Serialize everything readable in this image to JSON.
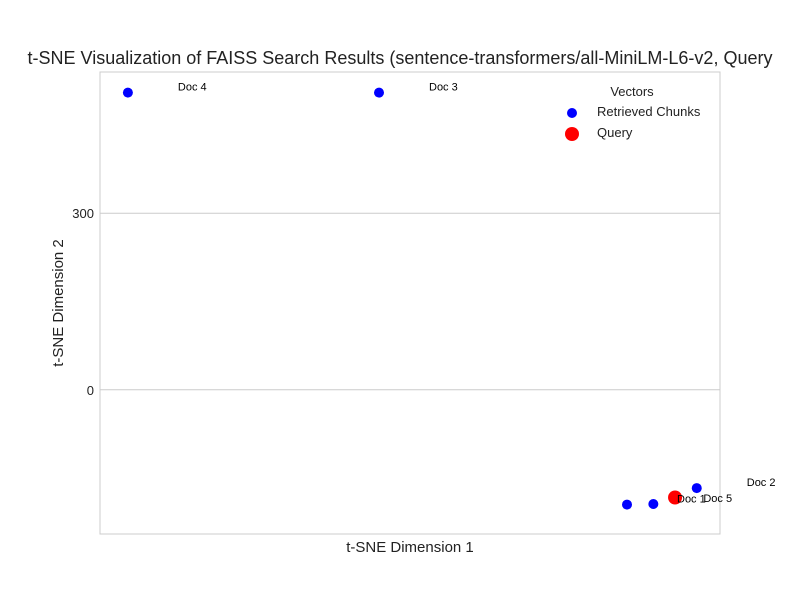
{
  "chart_data": {
    "type": "scatter",
    "title": "t-SNE Visualization of FAISS Search Results (sentence-transformers/all-MiniLM-L6-v2, Query",
    "xlabel": "t-SNE Dimension 1",
    "ylabel": "t-SNE Dimension 2",
    "xlim": [
      -170,
      230
    ],
    "ylim": [
      -245,
      540
    ],
    "yticks": [
      0,
      300
    ],
    "xticks": [],
    "grid": true,
    "legend": {
      "title": "Vectors",
      "placement": "top-right"
    },
    "series": [
      {
        "name": "Retrieved Chunks",
        "color": "#0000ff",
        "points": [
          {
            "label": "Doc 4",
            "x": -152,
            "y": 505
          },
          {
            "label": "Doc 3",
            "x": 10,
            "y": 505
          },
          {
            "label": "Doc 2",
            "x": 215,
            "y": -167
          },
          {
            "label": "Doc 1",
            "x": 170,
            "y": -195
          },
          {
            "label": "Doc 5",
            "x": 187,
            "y": -194
          }
        ]
      },
      {
        "name": "Query",
        "color": "#ff0000",
        "points": [
          {
            "label": "",
            "x": 201,
            "y": -183
          }
        ]
      }
    ]
  }
}
